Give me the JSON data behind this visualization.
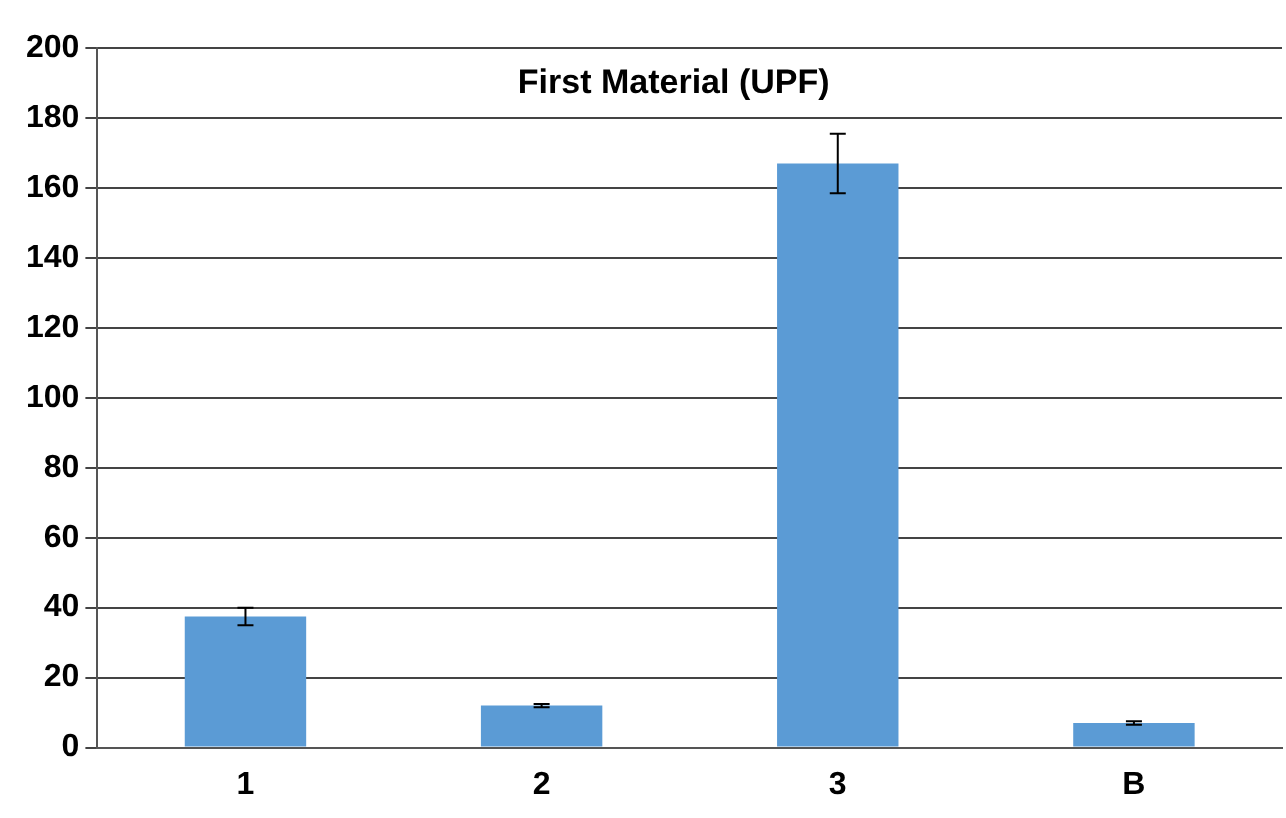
{
  "chart_data": {
    "type": "bar",
    "title": "First Material (UPF)",
    "categories": [
      "1",
      "2",
      "3",
      "B"
    ],
    "values": [
      37.5,
      12,
      167,
      7
    ],
    "color": "#5b9bd5",
    "errors": [
      2.5,
      0.5,
      8.5,
      0.5
    ],
    "ylim": [
      0,
      200
    ],
    "yticks": [
      0,
      20,
      40,
      60,
      80,
      100,
      120,
      140,
      160,
      180,
      200
    ],
    "grid": "y",
    "legend": false
  }
}
